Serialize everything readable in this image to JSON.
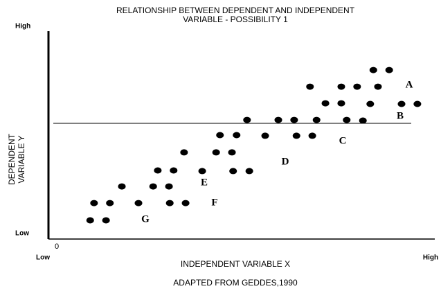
{
  "chart_data": {
    "type": "scatter",
    "title": [
      "RELATIONSHIP BETWEEN DEPENDENT AND INDEPENDENT",
      "VARIABLE - POSSIBILITY 1"
    ],
    "x_label": "INDEPENDENT VARIABLE X",
    "y_label": [
      "DEPENDENT",
      "VARIABLE Y"
    ],
    "origin_label": "0",
    "caption": "ADAPTED FROM GEDDES,1990",
    "annotations": [
      "A",
      "B",
      "C",
      "D",
      "E",
      "F",
      "G"
    ],
    "color": "#000000",
    "xlim": [
      0,
      100
    ],
    "ylim": [
      0,
      100
    ],
    "xticks": [
      {
        "value": 0,
        "label": "Low"
      },
      {
        "value": 100,
        "label": "High"
      }
    ],
    "yticks": [
      {
        "value": 0,
        "label": "Low"
      },
      {
        "value": 100,
        "label": "High"
      }
    ],
    "series": [
      {
        "name": null,
        "color": "#000000",
        "x": [
          10.8,
          14.9,
          11.8,
          15.9,
          23.3,
          31.4,
          35.5,
          19.0,
          27.1,
          31.2,
          28.3,
          32.4,
          39.8,
          47.8,
          52.0,
          35.1,
          43.4,
          47.5,
          44.4,
          48.7,
          56.1,
          64.2,
          68.3,
          51.4,
          59.5,
          63.6,
          69.4,
          77.2,
          81.4,
          71.7,
          75.8,
          83.3,
          91.4,
          95.5,
          67.7,
          75.8,
          79.9,
          85.3,
          84.1,
          88.2
        ],
        "values": [
          9,
          9,
          17.3,
          17.3,
          17.3,
          17.3,
          17.3,
          25.3,
          25.3,
          25.3,
          33,
          33,
          32.7,
          32.7,
          32.7,
          41.7,
          41.7,
          41.7,
          50,
          50,
          49.7,
          49.7,
          49.7,
          57.3,
          57.3,
          57.3,
          57.3,
          57.3,
          57,
          65.3,
          65.3,
          65,
          65,
          65,
          73.3,
          73.3,
          73.3,
          73.3,
          81.3,
          81.3
        ]
      }
    ]
  }
}
